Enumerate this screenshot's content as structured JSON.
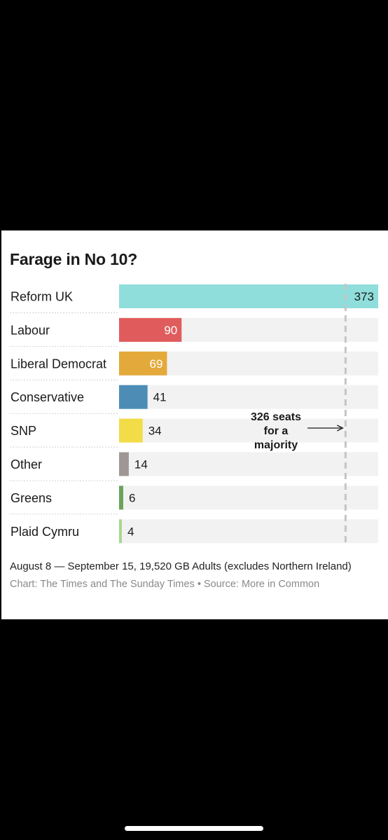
{
  "chart_data": {
    "type": "bar",
    "orientation": "horizontal",
    "title": "Farage in No 10?",
    "categories": [
      "Reform UK",
      "Labour",
      "Liberal Democrat",
      "Conservative",
      "SNP",
      "Other",
      "Greens",
      "Plaid Cymru"
    ],
    "values": [
      373,
      90,
      69,
      41,
      34,
      14,
      6,
      4
    ],
    "colors": [
      "#8fdedb",
      "#e05c5c",
      "#e3a93a",
      "#4d8db5",
      "#f2dc47",
      "#9f9795",
      "#6aa35b",
      "#a5d98c"
    ],
    "track_color": "#f2f2f2",
    "xlim": [
      0,
      373
    ],
    "grid": false,
    "reference_line": {
      "value": 326,
      "label_lines": [
        "326 seats",
        "for a",
        "majority"
      ]
    },
    "subtitle": "August 8 — September 15, 19,520 GB Adults (excludes Northern Ireland)",
    "source": "Chart: The Times and The Sunday Times • Source: More in Common"
  }
}
